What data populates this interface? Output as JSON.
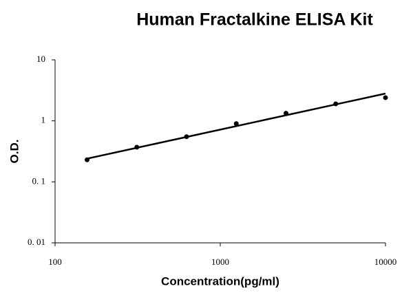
{
  "chart_data": {
    "type": "scatter",
    "title": "Human Fractalkine ELISA Kit",
    "xlabel": "Concentration(pg/ml)",
    "ylabel": "O.D.",
    "x": [
      156.25,
      312.5,
      625,
      1250,
      2500,
      5000,
      10000
    ],
    "values": [
      0.23,
      0.37,
      0.55,
      0.9,
      1.33,
      1.9,
      2.4
    ],
    "color": "#000000",
    "trendline": {
      "x": [
        156.25,
        10000
      ],
      "values": [
        0.24,
        2.8
      ],
      "color": "#000000"
    },
    "xscale": "log",
    "yscale": "log",
    "xlim": [
      100,
      10000
    ],
    "xticks": [
      100,
      1000,
      10000
    ],
    "ylim": [
      0.01,
      10
    ],
    "yticks": [
      {
        "value": 0.01,
        "label": "0. 01"
      },
      {
        "value": 0.1,
        "label": "0. 1"
      },
      1,
      10
    ],
    "grid": false
  }
}
